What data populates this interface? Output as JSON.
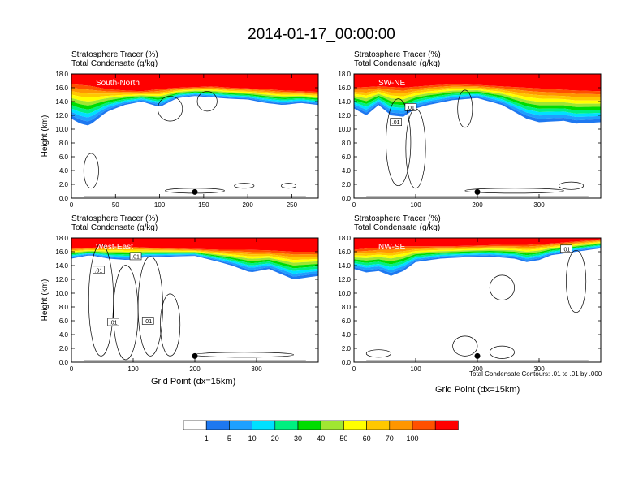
{
  "title": "2014-01-17_00:00:00",
  "chart_data": [
    {
      "type": "heatmap",
      "variable_labels": [
        "Stratosphere Tracer   (%)",
        "Total Condensate   (g/kg)"
      ],
      "cross_section": "South-North",
      "ylabel": "Height (km)",
      "xlabel": "",
      "xlim": [
        0,
        280
      ],
      "ylim": [
        0,
        18
      ],
      "xticks": [
        "0",
        "50",
        "100",
        "150",
        "200",
        "250"
      ],
      "yticks": [
        "0.0",
        "2.0",
        "4.0",
        "6.0",
        "8.0",
        "10.0",
        "12.0",
        "14.0",
        "16.0",
        "18.0"
      ],
      "marker": {
        "x": 140,
        "y": 0.9
      },
      "tracer_top": [
        [
          0,
          16.5
        ],
        [
          20,
          16.3
        ],
        [
          40,
          15.8
        ],
        [
          60,
          15.6
        ],
        [
          80,
          15.5
        ],
        [
          100,
          15.8
        ],
        [
          120,
          16.0
        ],
        [
          140,
          16.1
        ],
        [
          160,
          16.2
        ],
        [
          180,
          16.0
        ],
        [
          200,
          15.9
        ],
        [
          220,
          15.8
        ],
        [
          240,
          15.6
        ],
        [
          260,
          15.5
        ],
        [
          280,
          15.4
        ]
      ],
      "tracer_bottom": [
        [
          0,
          11.5
        ],
        [
          10,
          10.8
        ],
        [
          20,
          10.5
        ],
        [
          30,
          11.5
        ],
        [
          40,
          12.5
        ],
        [
          60,
          13.5
        ],
        [
          80,
          14.0
        ],
        [
          100,
          13.2
        ],
        [
          120,
          14.5
        ],
        [
          140,
          14.8
        ],
        [
          160,
          14.6
        ],
        [
          180,
          14.4
        ],
        [
          200,
          14.3
        ],
        [
          220,
          13.8
        ],
        [
          240,
          13.5
        ],
        [
          260,
          13.8
        ],
        [
          280,
          13.5
        ]
      ]
    },
    {
      "type": "heatmap",
      "variable_labels": [
        "Stratosphere Tracer   (%)",
        "Total Condensate   (g/kg)"
      ],
      "cross_section": "SW-NE",
      "ylabel": "",
      "xlabel": "",
      "xlim": [
        0,
        400
      ],
      "ylim": [
        0,
        18
      ],
      "xticks": [
        "0",
        "100",
        "200",
        "300"
      ],
      "yticks": [
        "0.0",
        "2.0",
        "4.0",
        "6.0",
        "8.0",
        "10.0",
        "12.0",
        "14.0",
        "16.0",
        "18.0"
      ],
      "contour_labels": [
        ".01",
        ".01"
      ],
      "marker": {
        "x": 200,
        "y": 0.9
      },
      "tracer_top": [
        [
          0,
          16.0
        ],
        [
          40,
          16.2
        ],
        [
          80,
          16.0
        ],
        [
          120,
          16.3
        ],
        [
          160,
          16.5
        ],
        [
          200,
          16.4
        ],
        [
          240,
          16.2
        ],
        [
          280,
          16.0
        ],
        [
          320,
          15.8
        ],
        [
          360,
          15.6
        ],
        [
          400,
          15.5
        ]
      ],
      "tracer_bottom": [
        [
          0,
          13.0
        ],
        [
          20,
          12.0
        ],
        [
          40,
          13.5
        ],
        [
          60,
          12.0
        ],
        [
          80,
          11.8
        ],
        [
          100,
          13.0
        ],
        [
          120,
          13.5
        ],
        [
          160,
          14.2
        ],
        [
          200,
          14.5
        ],
        [
          240,
          13.5
        ],
        [
          260,
          12.5
        ],
        [
          280,
          11.5
        ],
        [
          300,
          11.0
        ],
        [
          340,
          11.2
        ],
        [
          360,
          10.8
        ],
        [
          400,
          11.0
        ]
      ]
    },
    {
      "type": "heatmap",
      "variable_labels": [
        "Stratosphere Tracer   (%)",
        "Total Condensate   (g/kg)"
      ],
      "cross_section": "West-East",
      "ylabel": "Height (km)",
      "xlabel": "Grid Point (dx=15km)",
      "xlim": [
        0,
        400
      ],
      "ylim": [
        0,
        18
      ],
      "xticks": [
        "0",
        "100",
        "200",
        "300"
      ],
      "yticks": [
        "0.0",
        "2.0",
        "4.0",
        "6.0",
        "8.0",
        "10.0",
        "12.0",
        "14.0",
        "16.0",
        "18.0"
      ],
      "contour_labels": [
        ".01",
        ".01",
        ".01",
        ".01"
      ],
      "marker": {
        "x": 200,
        "y": 0.9
      },
      "tracer_top": [
        [
          0,
          16.5
        ],
        [
          40,
          16.6
        ],
        [
          80,
          16.8
        ],
        [
          120,
          16.6
        ],
        [
          160,
          16.5
        ],
        [
          200,
          16.4
        ],
        [
          240,
          16.3
        ],
        [
          280,
          16.3
        ],
        [
          320,
          16.2
        ],
        [
          360,
          16.0
        ],
        [
          400,
          16.0
        ]
      ],
      "tracer_bottom": [
        [
          0,
          15.0
        ],
        [
          30,
          15.5
        ],
        [
          60,
          15.0
        ],
        [
          90,
          14.8
        ],
        [
          120,
          15.2
        ],
        [
          160,
          15.3
        ],
        [
          200,
          15.4
        ],
        [
          240,
          14.5
        ],
        [
          260,
          14.0
        ],
        [
          290,
          13.0
        ],
        [
          320,
          13.5
        ],
        [
          360,
          12.0
        ],
        [
          400,
          12.5
        ]
      ]
    },
    {
      "type": "heatmap",
      "variable_labels": [
        "Stratosphere Tracer   (%)",
        "Total Condensate   (g/kg)"
      ],
      "cross_section": "NW-SE",
      "ylabel": "",
      "xlabel": "Grid Point (dx=15km)",
      "xlim": [
        0,
        400
      ],
      "ylim": [
        0,
        18
      ],
      "xticks": [
        "0",
        "100",
        "200",
        "300"
      ],
      "yticks": [
        "0.0",
        "2.0",
        "4.0",
        "6.0",
        "8.0",
        "10.0",
        "12.0",
        "14.0",
        "16.0",
        "18.0"
      ],
      "contour_labels": [
        ".01"
      ],
      "marker": {
        "x": 200,
        "y": 0.9
      },
      "tracer_top": [
        [
          0,
          16.3
        ],
        [
          40,
          16.6
        ],
        [
          80,
          16.8
        ],
        [
          120,
          16.8
        ],
        [
          160,
          16.8
        ],
        [
          200,
          16.9
        ],
        [
          240,
          17.0
        ],
        [
          280,
          17.0
        ],
        [
          320,
          17.2
        ],
        [
          360,
          17.5
        ],
        [
          400,
          17.8
        ]
      ],
      "tracer_bottom": [
        [
          0,
          13.5
        ],
        [
          20,
          13.0
        ],
        [
          40,
          13.2
        ],
        [
          60,
          12.5
        ],
        [
          80,
          13.2
        ],
        [
          100,
          14.5
        ],
        [
          140,
          15.0
        ],
        [
          180,
          15.2
        ],
        [
          220,
          15.3
        ],
        [
          260,
          15.0
        ],
        [
          280,
          14.5
        ],
        [
          300,
          14.8
        ],
        [
          320,
          15.5
        ],
        [
          360,
          16.0
        ],
        [
          400,
          16.5
        ]
      ]
    }
  ],
  "footnote": "Total Condensate Contours: .01 to .01 by .000",
  "colorbar": {
    "colors": [
      "#ffffff",
      "#1e78f0",
      "#1ea0ff",
      "#00e0ff",
      "#00f080",
      "#00dc00",
      "#a0e632",
      "#ffff00",
      "#ffc800",
      "#ff9600",
      "#ff5000",
      "#ff0000"
    ],
    "labels": [
      "1",
      "5",
      "10",
      "20",
      "30",
      "40",
      "50",
      "60",
      "70",
      "100"
    ]
  }
}
